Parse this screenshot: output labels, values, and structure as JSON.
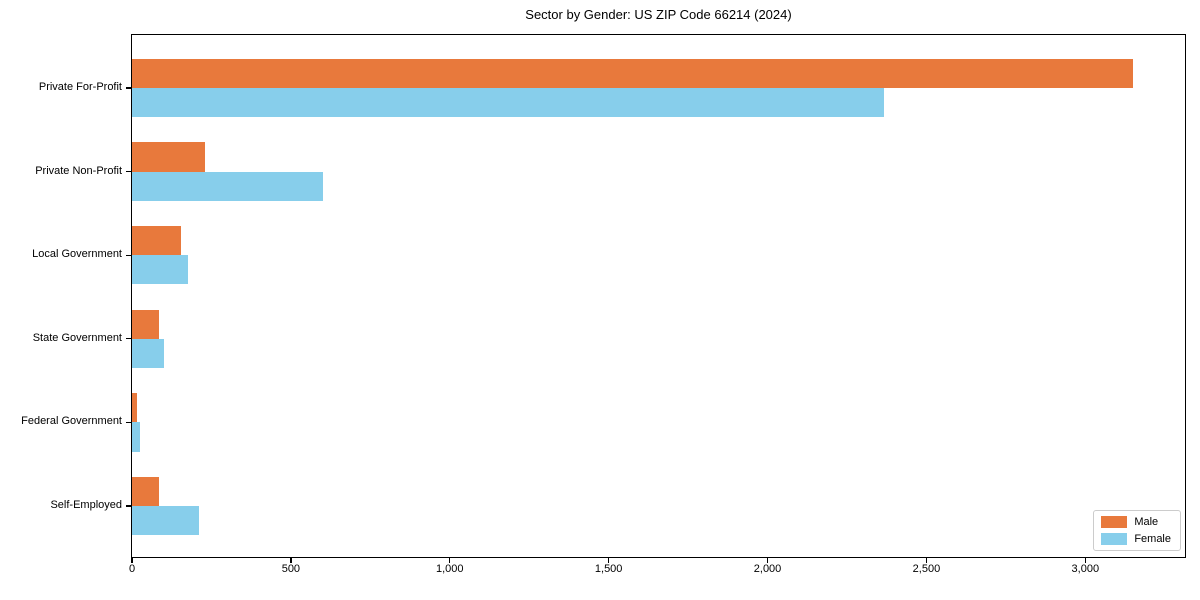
{
  "chart_data": {
    "type": "bar",
    "orientation": "horizontal",
    "title": "Sector by Gender: US ZIP Code 66214 (2024)",
    "categories": [
      "Private For-Profit",
      "Private Non-Profit",
      "Local Government",
      "State Government",
      "Federal Government",
      "Self-Employed"
    ],
    "series": [
      {
        "name": "Male",
        "color": "#e8793c",
        "values": [
          3150,
          230,
          155,
          85,
          15,
          85
        ]
      },
      {
        "name": "Female",
        "color": "#87ceeb",
        "values": [
          2365,
          600,
          175,
          100,
          25,
          210
        ]
      }
    ],
    "xlabel": "",
    "ylabel": "",
    "xlim": [
      0,
      3320
    ],
    "xticks": [
      0,
      500,
      1000,
      1500,
      2000,
      2500,
      3000
    ],
    "xtick_labels": [
      "0",
      "500",
      "1,000",
      "1,500",
      "2,000",
      "2,500",
      "3,000"
    ],
    "grid": false,
    "legend": {
      "position": "lower right",
      "entries": [
        {
          "label": "Male",
          "color": "#e8793c"
        },
        {
          "label": "Female",
          "color": "#87ceeb"
        }
      ]
    }
  }
}
